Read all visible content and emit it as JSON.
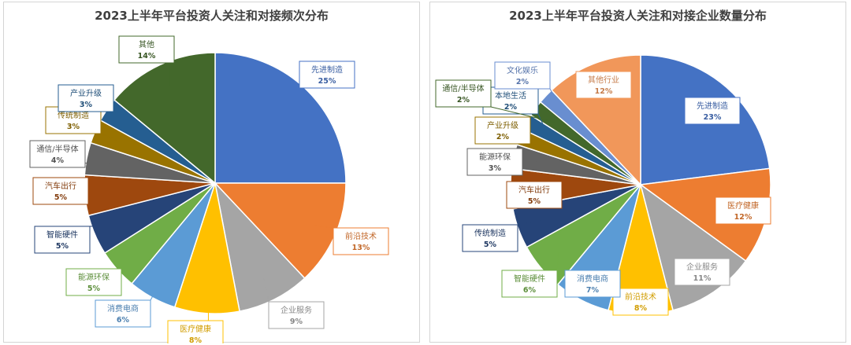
{
  "chart_data": [
    {
      "type": "pie",
      "title": "2023上半年平台投资人关注和对接频次分布",
      "slices": [
        {
          "label": "先进制造",
          "value": 25,
          "pct": "25%",
          "color": "#4472C4"
        },
        {
          "label": "前沿技术",
          "value": 13,
          "pct": "13%",
          "color": "#ED7D31"
        },
        {
          "label": "企业服务",
          "value": 9,
          "pct": "9%",
          "color": "#A5A5A5"
        },
        {
          "label": "医疗健康",
          "value": 8,
          "pct": "8%",
          "color": "#FFC000"
        },
        {
          "label": "消费电商",
          "value": 6,
          "pct": "6%",
          "color": "#5B9BD5"
        },
        {
          "label": "能源环保",
          "value": 5,
          "pct": "5%",
          "color": "#70AD47"
        },
        {
          "label": "智能硬件",
          "value": 5,
          "pct": "5%",
          "color": "#264478"
        },
        {
          "label": "汽车出行",
          "value": 5,
          "pct": "5%",
          "color": "#9E480E"
        },
        {
          "label": "通信/半导体",
          "value": 4,
          "pct": "4%",
          "color": "#636363"
        },
        {
          "label": "传统制造",
          "value": 3,
          "pct": "3%",
          "color": "#997300"
        },
        {
          "label": "产业升级",
          "value": 3,
          "pct": "3%",
          "color": "#255E91"
        },
        {
          "label": "其他",
          "value": 14,
          "pct": "14%",
          "color": "#43682B"
        }
      ]
    },
    {
      "type": "pie",
      "title": "2023上半年平台投资人关注和对接企业数量分布",
      "slices": [
        {
          "label": "先进制造",
          "value": 23,
          "pct": "23%",
          "color": "#4472C4"
        },
        {
          "label": "医疗健康",
          "value": 12,
          "pct": "12%",
          "color": "#ED7D31"
        },
        {
          "label": "企业服务",
          "value": 11,
          "pct": "11%",
          "color": "#A5A5A5"
        },
        {
          "label": "前沿技术",
          "value": 8,
          "pct": "8%",
          "color": "#FFC000"
        },
        {
          "label": "消费电商",
          "value": 7,
          "pct": "7%",
          "color": "#5B9BD5"
        },
        {
          "label": "智能硬件",
          "value": 6,
          "pct": "6%",
          "color": "#70AD47"
        },
        {
          "label": "传统制造",
          "value": 5,
          "pct": "5%",
          "color": "#264478"
        },
        {
          "label": "汽车出行",
          "value": 5,
          "pct": "5%",
          "color": "#9E480E"
        },
        {
          "label": "能源环保",
          "value": 3,
          "pct": "3%",
          "color": "#636363"
        },
        {
          "label": "产业升级",
          "value": 2,
          "pct": "2%",
          "color": "#997300"
        },
        {
          "label": "本地生活",
          "value": 2,
          "pct": "2%",
          "color": "#255E91"
        },
        {
          "label": "通信/半导体",
          "value": 2,
          "pct": "2%",
          "color": "#43682B"
        },
        {
          "label": "文化娱乐",
          "value": 2,
          "pct": "2%",
          "color": "#698ED0"
        },
        {
          "label": "其他行业",
          "value": 12,
          "pct": "12%",
          "color": "#F1975A"
        }
      ]
    }
  ]
}
